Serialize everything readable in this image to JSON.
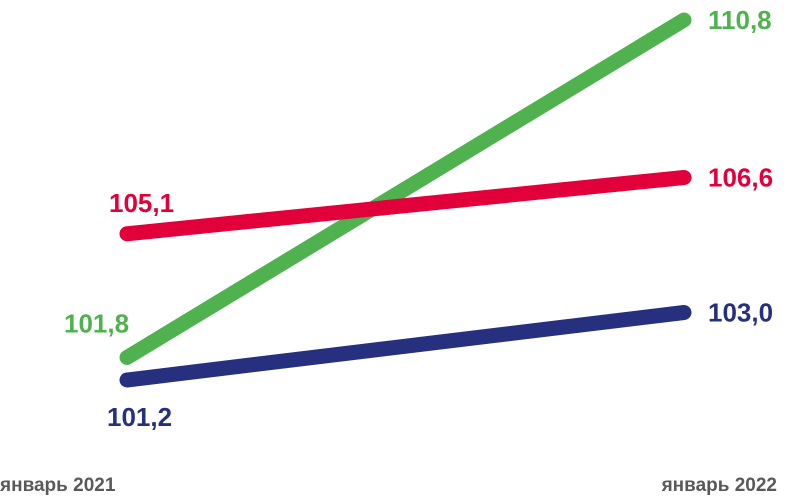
{
  "title": "",
  "chart_data": {
    "type": "line",
    "categories": [
      "январь 2021",
      "январь 2022"
    ],
    "ylim": [
      100,
      111
    ],
    "grid": false,
    "legend": "none",
    "series": [
      {
        "values": [
          101.8,
          110.8
        ],
        "labels": [
          "101,8",
          "110,8"
        ],
        "color": "#4fb24f"
      },
      {
        "values": [
          105.1,
          106.6
        ],
        "labels": [
          "105,1",
          "106,6"
        ],
        "color": "#e2003b"
      },
      {
        "values": [
          101.2,
          103.0
        ],
        "labels": [
          "101,2",
          "103,0"
        ],
        "color": "#27307f"
      }
    ]
  }
}
